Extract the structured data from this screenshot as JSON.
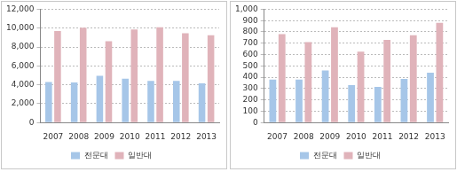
{
  "chart_data": [
    {
      "type": "bar",
      "categories": [
        "2007",
        "2008",
        "2009",
        "2010",
        "2011",
        "2012",
        "2013"
      ],
      "series": [
        {
          "name": "전문대",
          "color": "#a6c6e8",
          "values": [
            4300,
            4250,
            4950,
            4650,
            4400,
            4400,
            4150
          ]
        },
        {
          "name": "일반대",
          "color": "#e0b3ba",
          "values": [
            9700,
            10050,
            8600,
            9850,
            10100,
            9450,
            9250
          ]
        }
      ],
      "ylim": [
        0,
        12000
      ],
      "yticks": [
        0,
        {
          "value": 2000,
          "label": "2,000"
        },
        {
          "value": 4000,
          "label": "4,000"
        },
        {
          "value": 6000,
          "label": "6,000"
        },
        {
          "value": 8000,
          "label": "8,000"
        },
        {
          "value": 10000,
          "label": "10,000"
        },
        {
          "value": 12000,
          "label": "12,000"
        }
      ],
      "grid": true,
      "legend": "bottom"
    },
    {
      "type": "bar",
      "categories": [
        "2007",
        "2008",
        "2009",
        "2010",
        "2011",
        "2012",
        "2013"
      ],
      "series": [
        {
          "name": "전문대",
          "color": "#a6c6e8",
          "values": [
            380,
            380,
            460,
            330,
            315,
            385,
            440
          ]
        },
        {
          "name": "일반대",
          "color": "#e0b3ba",
          "values": [
            780,
            710,
            840,
            625,
            730,
            770,
            880
          ]
        }
      ],
      "ylim": [
        0,
        1000
      ],
      "yticks": [
        0,
        100,
        200,
        300,
        400,
        500,
        600,
        700,
        800,
        900,
        {
          "value": 1000,
          "label": "1,000"
        }
      ],
      "grid": true,
      "legend": "bottom"
    }
  ]
}
